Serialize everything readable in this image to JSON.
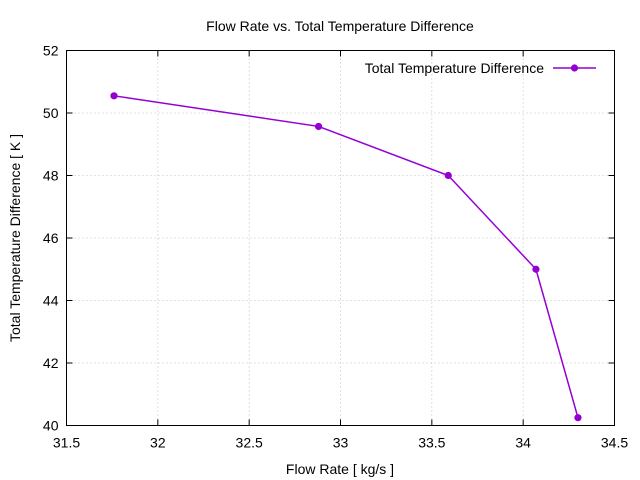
{
  "chart_data": {
    "type": "line",
    "title": "Flow Rate vs. Total Temperature Difference",
    "xlabel": "Flow Rate [ kg/s ]",
    "ylabel": "Total Temperature Difference [ K ]",
    "xlim": [
      31.5,
      34.5
    ],
    "ylim": [
      40,
      52
    ],
    "xticks": [
      31.5,
      32,
      32.5,
      33,
      33.5,
      34,
      34.5
    ],
    "yticks": [
      40,
      42,
      44,
      46,
      48,
      50,
      52
    ],
    "xtick_labels": [
      "31.5",
      "32",
      "32.5",
      "33",
      "33.5",
      "34",
      "34.5"
    ],
    "ytick_labels": [
      "40",
      "42",
      "44",
      "46",
      "48",
      "50",
      "52"
    ],
    "grid": true,
    "legend_position": "top-right",
    "series": [
      {
        "name": "Total Temperature Difference",
        "color": "#9400d3",
        "x": [
          31.76,
          32.88,
          33.59,
          34.07,
          34.3
        ],
        "y": [
          50.55,
          49.57,
          48.0,
          45.0,
          40.25
        ]
      }
    ]
  }
}
